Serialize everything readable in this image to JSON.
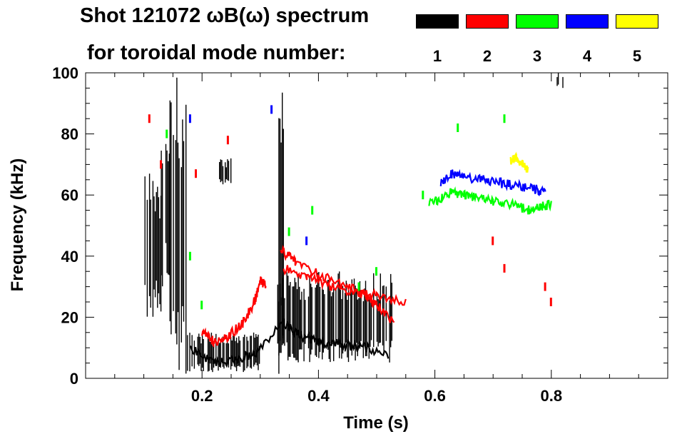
{
  "chart_data": {
    "type": "scatter",
    "subtype": "spectrogram",
    "title": "Shot 121072 ωB(ω) spectrum",
    "subtitle": "for toroidal mode number:",
    "xlabel": "Time (s)",
    "ylabel": "Frequency (kHz)",
    "xlim": [
      0.0,
      1.0
    ],
    "ylim": [
      0,
      100
    ],
    "x_ticks": [
      0.2,
      0.4,
      0.6,
      0.8
    ],
    "x_tick_labels": [
      "0.2",
      "0.4",
      "0.6",
      "0.8"
    ],
    "y_ticks": [
      0,
      20,
      40,
      60,
      80,
      100
    ],
    "y_tick_labels": [
      "0",
      "20",
      "40",
      "60",
      "80",
      "100"
    ],
    "legend": [
      {
        "label": "1",
        "color": "#000000"
      },
      {
        "label": "2",
        "color": "#ff0000"
      },
      {
        "label": "3",
        "color": "#00ff00"
      },
      {
        "label": "4",
        "color": "#0000ff"
      },
      {
        "label": "5",
        "color": "#ffff00"
      }
    ],
    "series": [
      {
        "name": "1",
        "color": "#000000",
        "regions": [
          {
            "t": [
              0.1,
              0.13
            ],
            "f": [
              20,
              68
            ]
          },
          {
            "t": [
              0.13,
              0.145
            ],
            "f": [
              30,
              90
            ]
          },
          {
            "t": [
              0.145,
              0.175
            ],
            "f": [
              0,
              100
            ]
          },
          {
            "t": [
              0.175,
              0.3
            ],
            "f": [
              2,
              15
            ]
          },
          {
            "t": [
              0.23,
              0.25
            ],
            "f": [
              63,
              72
            ]
          },
          {
            "t": [
              0.33,
              0.34
            ],
            "f": [
              0,
              100
            ]
          },
          {
            "t": [
              0.33,
              0.53
            ],
            "f": [
              5,
              35
            ]
          },
          {
            "t": [
              0.81,
              0.82
            ],
            "f": [
              95,
              100
            ]
          }
        ],
        "ridge": [
          [
            0.18,
            10
          ],
          [
            0.22,
            5
          ],
          [
            0.26,
            6
          ],
          [
            0.29,
            8
          ],
          [
            0.34,
            18
          ],
          [
            0.37,
            14
          ],
          [
            0.4,
            12
          ],
          [
            0.44,
            11
          ],
          [
            0.48,
            10
          ],
          [
            0.52,
            8
          ]
        ]
      },
      {
        "name": "2",
        "color": "#ff0000",
        "ridge": [
          [
            0.2,
            15
          ],
          [
            0.22,
            12
          ],
          [
            0.24,
            13
          ],
          [
            0.27,
            18
          ],
          [
            0.29,
            25
          ],
          [
            0.3,
            32
          ],
          [
            0.31,
            30
          ]
        ],
        "ridge2": [
          [
            0.335,
            42
          ],
          [
            0.36,
            38
          ],
          [
            0.4,
            34
          ],
          [
            0.44,
            31
          ],
          [
            0.48,
            27
          ],
          [
            0.5,
            24
          ],
          [
            0.53,
            18
          ]
        ],
        "ridge3": [
          [
            0.34,
            36
          ],
          [
            0.38,
            33
          ],
          [
            0.42,
            30
          ],
          [
            0.46,
            28
          ],
          [
            0.5,
            27
          ],
          [
            0.55,
            25
          ]
        ],
        "spots": [
          [
            0.11,
            85
          ],
          [
            0.13,
            70
          ],
          [
            0.19,
            67
          ],
          [
            0.245,
            78
          ],
          [
            0.7,
            45
          ],
          [
            0.72,
            36
          ],
          [
            0.79,
            30
          ],
          [
            0.8,
            25
          ]
        ]
      },
      {
        "name": "3",
        "color": "#00ff00",
        "ridge": [
          [
            0.59,
            57
          ],
          [
            0.61,
            59
          ],
          [
            0.63,
            61
          ],
          [
            0.65,
            60
          ],
          [
            0.67,
            59
          ],
          [
            0.7,
            58
          ],
          [
            0.73,
            57
          ],
          [
            0.76,
            55
          ],
          [
            0.78,
            56
          ],
          [
            0.8,
            57
          ]
        ],
        "spots": [
          [
            0.14,
            80
          ],
          [
            0.18,
            40
          ],
          [
            0.2,
            24
          ],
          [
            0.35,
            48
          ],
          [
            0.39,
            55
          ],
          [
            0.47,
            30
          ],
          [
            0.5,
            35
          ],
          [
            0.58,
            60
          ],
          [
            0.64,
            82
          ],
          [
            0.72,
            85
          ]
        ]
      },
      {
        "name": "4",
        "color": "#0000ff",
        "ridge": [
          [
            0.61,
            64
          ],
          [
            0.63,
            67
          ],
          [
            0.65,
            66
          ],
          [
            0.68,
            65
          ],
          [
            0.71,
            64
          ],
          [
            0.74,
            63
          ],
          [
            0.77,
            62
          ],
          [
            0.79,
            61
          ]
        ],
        "spots": [
          [
            0.18,
            85
          ],
          [
            0.32,
            88
          ],
          [
            0.38,
            45
          ]
        ]
      },
      {
        "name": "5",
        "color": "#ffff00",
        "ridge": [
          [
            0.73,
            71
          ],
          [
            0.74,
            72
          ],
          [
            0.75,
            70
          ],
          [
            0.76,
            68
          ]
        ]
      }
    ]
  }
}
